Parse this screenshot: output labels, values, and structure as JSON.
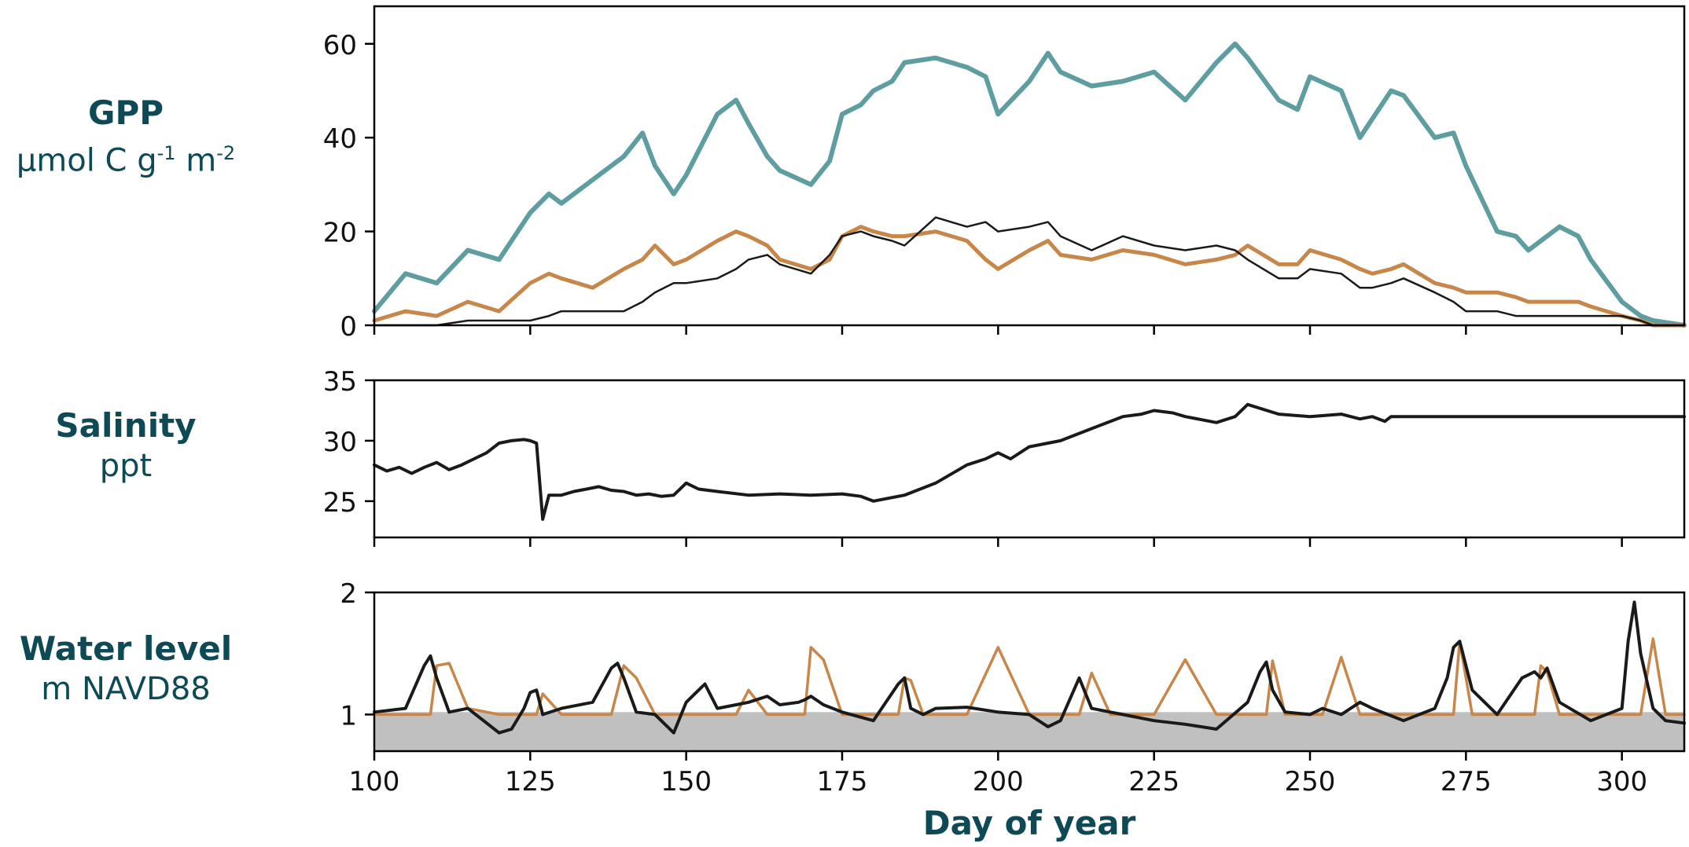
{
  "labels": {
    "gpp_title": "GPP",
    "gpp_unit_main": "µmol C g",
    "gpp_unit_sup1": "-1",
    "gpp_unit_mid": " m",
    "gpp_unit_sup2": "-2",
    "sal_title": "Salinity",
    "sal_unit": "ppt",
    "wl_title": "Water level",
    "wl_unit": "m NAVD88",
    "xlabel": "Day of year"
  },
  "colors": {
    "teal": "#5f9ea0",
    "orange": "#c8874a",
    "black": "#1a1a1a",
    "text": "#0d4a55",
    "shade": "#c0c0c0"
  },
  "chart_data": [
    {
      "type": "line",
      "panel": "GPP",
      "x": [
        100,
        105,
        110,
        115,
        120,
        125,
        128,
        130,
        135,
        140,
        143,
        145,
        148,
        150,
        155,
        158,
        160,
        163,
        165,
        170,
        173,
        175,
        178,
        180,
        183,
        185,
        190,
        195,
        198,
        200,
        205,
        208,
        210,
        215,
        220,
        225,
        230,
        235,
        238,
        240,
        245,
        248,
        250,
        255,
        258,
        260,
        263,
        265,
        270,
        273,
        275,
        280,
        283,
        285,
        290,
        293,
        295,
        300,
        303,
        305,
        310
      ],
      "xlim": [
        100,
        310
      ],
      "xticks": [
        100,
        125,
        150,
        175,
        200,
        225,
        250,
        275,
        300
      ],
      "ylim": [
        0,
        68
      ],
      "yticks": [
        0,
        20,
        40,
        60
      ],
      "series": [
        {
          "values": [
            3,
            11,
            9,
            16,
            14,
            24,
            28,
            26,
            31,
            36,
            41,
            34,
            28,
            32,
            45,
            48,
            43,
            36,
            33,
            30,
            35,
            45,
            47,
            50,
            52,
            56,
            57,
            55,
            53,
            45,
            52,
            58,
            54,
            51,
            52,
            54,
            48,
            56,
            60,
            57,
            48,
            46,
            53,
            50,
            40,
            44,
            50,
            49,
            40,
            41,
            34,
            20,
            19,
            16,
            21,
            19,
            14,
            5,
            2,
            1,
            0
          ],
          "color": "#5f9ea0"
        },
        {
          "values": [
            1,
            3,
            2,
            5,
            3,
            9,
            11,
            10,
            8,
            12,
            14,
            17,
            13,
            14,
            18,
            20,
            19,
            17,
            14,
            12,
            14,
            19,
            21,
            20,
            19,
            19,
            20,
            18,
            14,
            12,
            16,
            18,
            15,
            14,
            16,
            15,
            13,
            14,
            15,
            17,
            13,
            13,
            16,
            14,
            12,
            11,
            12,
            13,
            9,
            8,
            7,
            7,
            6,
            5,
            5,
            5,
            4,
            2,
            1,
            0,
            0
          ],
          "color": "#c8874a"
        },
        {
          "values": [
            0,
            0,
            0,
            1,
            1,
            1,
            2,
            3,
            3,
            3,
            5,
            7,
            9,
            9,
            10,
            12,
            14,
            15,
            13,
            11,
            15,
            19,
            20,
            19,
            18,
            17,
            23,
            21,
            22,
            20,
            21,
            22,
            19,
            16,
            19,
            17,
            16,
            17,
            16,
            14,
            10,
            10,
            12,
            11,
            8,
            8,
            9,
            10,
            7,
            5,
            3,
            3,
            2,
            2,
            2,
            2,
            2,
            2,
            1,
            0,
            0
          ],
          "color": "#1a1a1a"
        }
      ]
    },
    {
      "type": "line",
      "panel": "Salinity",
      "x": [
        100,
        102,
        104,
        106,
        108,
        110,
        112,
        114,
        116,
        118,
        120,
        122,
        124,
        125,
        126,
        127,
        128,
        130,
        132,
        134,
        136,
        138,
        140,
        142,
        144,
        146,
        148,
        150,
        152,
        155,
        160,
        165,
        170,
        175,
        178,
        180,
        185,
        190,
        195,
        198,
        200,
        202,
        205,
        210,
        215,
        220,
        223,
        225,
        228,
        230,
        235,
        238,
        240,
        245,
        250,
        255,
        258,
        260,
        262,
        263,
        265,
        270,
        280,
        290,
        300,
        310
      ],
      "xlim": [
        100,
        310
      ],
      "xticks": [
        100,
        125,
        150,
        175,
        200,
        225,
        250,
        275,
        300
      ],
      "ylim": [
        22,
        35
      ],
      "yticks": [
        25,
        30,
        35
      ],
      "series": [
        {
          "values": [
            28,
            27.5,
            27.8,
            27.3,
            27.8,
            28.2,
            27.6,
            28,
            28.5,
            29,
            29.8,
            30,
            30.1,
            30,
            29.8,
            23.5,
            25.5,
            25.5,
            25.8,
            26,
            26.2,
            25.9,
            25.8,
            25.5,
            25.6,
            25.4,
            25.5,
            26.5,
            26,
            25.8,
            25.5,
            25.6,
            25.5,
            25.6,
            25.4,
            25,
            25.5,
            26.5,
            28,
            28.5,
            29,
            28.5,
            29.5,
            30,
            31,
            32,
            32.2,
            32.5,
            32.3,
            32,
            31.5,
            32,
            33,
            32.2,
            32,
            32.2,
            31.8,
            32,
            31.6,
            32,
            32,
            32,
            32,
            32,
            32,
            32
          ],
          "color": "#1a1a1a"
        }
      ]
    },
    {
      "type": "line",
      "panel": "Water level",
      "x": [
        100,
        105,
        108,
        109,
        110,
        112,
        115,
        120,
        122,
        124,
        125,
        126,
        127,
        130,
        135,
        138,
        139,
        140,
        142,
        145,
        148,
        150,
        152,
        153,
        155,
        158,
        160,
        163,
        165,
        168,
        169,
        170,
        172,
        175,
        180,
        184,
        185,
        186,
        188,
        190,
        195,
        200,
        205,
        208,
        210,
        213,
        215,
        218,
        220,
        225,
        230,
        235,
        240,
        242,
        243,
        244,
        246,
        250,
        252,
        255,
        258,
        260,
        265,
        270,
        272,
        273,
        274,
        276,
        280,
        284,
        286,
        287,
        288,
        290,
        295,
        300,
        301,
        302,
        303,
        305,
        307,
        310
      ],
      "xlim": [
        100,
        310
      ],
      "xticks": [
        100,
        125,
        150,
        175,
        200,
        225,
        250,
        275,
        300
      ],
      "ylim": [
        0.7,
        2
      ],
      "yticks": [
        1,
        2
      ],
      "shade_below": 1.02,
      "series": [
        {
          "values": [
            1,
            1,
            1,
            1,
            1.4,
            1.42,
            1.05,
            1,
            1,
            1,
            1,
            1,
            1.17,
            1,
            1,
            1,
            1.2,
            1.4,
            1.3,
            1,
            1,
            1,
            1,
            1,
            1,
            1,
            1.2,
            1,
            1,
            1,
            1,
            1.55,
            1.45,
            1,
            1,
            1,
            1.3,
            1.28,
            1,
            1,
            1,
            1.55,
            1,
            1,
            1,
            1,
            1.34,
            1,
            1,
            1,
            1.45,
            1,
            1,
            1,
            1,
            1.44,
            1,
            1,
            1,
            1.47,
            1,
            1,
            1,
            1,
            1,
            1,
            1.6,
            1,
            1,
            1,
            1,
            1.4,
            1.35,
            1,
            1,
            1,
            1,
            1,
            1,
            1.62,
            1,
            1
          ],
          "color": "#c8874a"
        },
        {
          "values": [
            1.02,
            1.05,
            1.4,
            1.48,
            1.3,
            1.02,
            1.05,
            0.85,
            0.88,
            1.05,
            1.18,
            1.2,
            1,
            1.05,
            1.1,
            1.38,
            1.42,
            1.3,
            1.02,
            1,
            0.85,
            1.1,
            1.2,
            1.25,
            1.05,
            1.08,
            1.1,
            1.15,
            1.08,
            1.1,
            1.12,
            1.15,
            1.08,
            1.02,
            0.95,
            1.25,
            1.3,
            1.05,
            1,
            1.05,
            1.06,
            1.02,
            1,
            0.9,
            0.95,
            1.3,
            1.05,
            1.02,
            1,
            0.95,
            0.92,
            0.88,
            1.1,
            1.35,
            1.43,
            1.2,
            1.02,
            1,
            1.05,
            1,
            1.1,
            1.05,
            0.95,
            1.05,
            1.3,
            1.55,
            1.6,
            1.2,
            1,
            1.3,
            1.35,
            1.3,
            1.38,
            1.1,
            0.95,
            1.05,
            1.6,
            1.92,
            1.5,
            1.05,
            0.95,
            0.93
          ],
          "color": "#1a1a1a"
        }
      ]
    }
  ]
}
